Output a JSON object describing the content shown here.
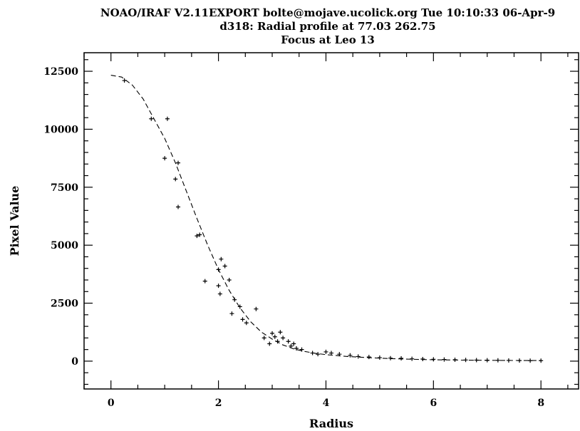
{
  "chart_data": {
    "type": "scatter",
    "title_lines": [
      "NOAO/IRAF V2.11EXPORT bolte@mojave.ucolick.org Tue 10:10:33 06-Apr-9",
      "d318: Radial profile at 77.03 262.75",
      "Focus at Leo 13"
    ],
    "xlabel": "Radius",
    "ylabel": "Pixel Value",
    "xlim": [
      -0.5,
      8.7
    ],
    "ylim": [
      -1200,
      13300
    ],
    "xticks": [
      0,
      2,
      4,
      6,
      8
    ],
    "yticks": [
      0,
      2500,
      5000,
      7500,
      10000,
      12500
    ],
    "grid": false,
    "series": [
      {
        "style": "points",
        "points": [
          [
            0.25,
            12100
          ],
          [
            0.75,
            10450
          ],
          [
            1.05,
            10450
          ],
          [
            1.0,
            8750
          ],
          [
            1.25,
            8550
          ],
          [
            1.2,
            7850
          ],
          [
            1.25,
            6650
          ],
          [
            1.6,
            5400
          ],
          [
            1.65,
            5450
          ],
          [
            1.75,
            3450
          ],
          [
            2.0,
            3950
          ],
          [
            2.05,
            4400
          ],
          [
            2.12,
            4100
          ],
          [
            2.2,
            3500
          ],
          [
            2.0,
            3250
          ],
          [
            2.03,
            2900
          ],
          [
            2.3,
            2650
          ],
          [
            2.25,
            2050
          ],
          [
            2.4,
            2350
          ],
          [
            2.45,
            1800
          ],
          [
            2.52,
            1650
          ],
          [
            2.7,
            2250
          ],
          [
            2.85,
            1000
          ],
          [
            2.95,
            750
          ],
          [
            3.0,
            1200
          ],
          [
            3.05,
            1050
          ],
          [
            3.1,
            850
          ],
          [
            3.15,
            1250
          ],
          [
            3.2,
            1000
          ],
          [
            3.3,
            850
          ],
          [
            3.35,
            650
          ],
          [
            3.4,
            750
          ],
          [
            3.45,
            550
          ],
          [
            3.55,
            500
          ],
          [
            3.75,
            350
          ],
          [
            3.85,
            300
          ],
          [
            4.0,
            400
          ],
          [
            4.1,
            350
          ],
          [
            4.25,
            300
          ],
          [
            4.45,
            250
          ],
          [
            4.6,
            200
          ],
          [
            4.8,
            180
          ],
          [
            5.0,
            150
          ],
          [
            5.2,
            130
          ],
          [
            5.4,
            120
          ],
          [
            5.6,
            100
          ],
          [
            5.8,
            90
          ],
          [
            6.0,
            80
          ],
          [
            6.2,
            70
          ],
          [
            6.4,
            60
          ],
          [
            6.6,
            50
          ],
          [
            6.8,
            45
          ],
          [
            7.0,
            40
          ],
          [
            7.2,
            35
          ],
          [
            7.4,
            30
          ],
          [
            7.6,
            25
          ],
          [
            7.8,
            20
          ],
          [
            8.0,
            20
          ]
        ]
      },
      {
        "style": "dashed-line",
        "points": [
          [
            0.0,
            12330
          ],
          [
            0.2,
            12250
          ],
          [
            0.4,
            11900
          ],
          [
            0.6,
            11300
          ],
          [
            0.8,
            10450
          ],
          [
            1.0,
            9600
          ],
          [
            1.2,
            8550
          ],
          [
            1.4,
            7350
          ],
          [
            1.6,
            6150
          ],
          [
            1.8,
            5000
          ],
          [
            2.0,
            3950
          ],
          [
            2.2,
            3050
          ],
          [
            2.4,
            2300
          ],
          [
            2.6,
            1700
          ],
          [
            2.8,
            1250
          ],
          [
            3.0,
            950
          ],
          [
            3.2,
            700
          ],
          [
            3.4,
            530
          ],
          [
            3.6,
            420
          ],
          [
            3.8,
            340
          ],
          [
            4.0,
            280
          ],
          [
            4.4,
            200
          ],
          [
            4.8,
            150
          ],
          [
            5.2,
            110
          ],
          [
            5.6,
            80
          ],
          [
            6.0,
            60
          ],
          [
            6.5,
            45
          ],
          [
            7.0,
            35
          ],
          [
            7.5,
            30
          ],
          [
            8.0,
            25
          ]
        ]
      }
    ]
  }
}
